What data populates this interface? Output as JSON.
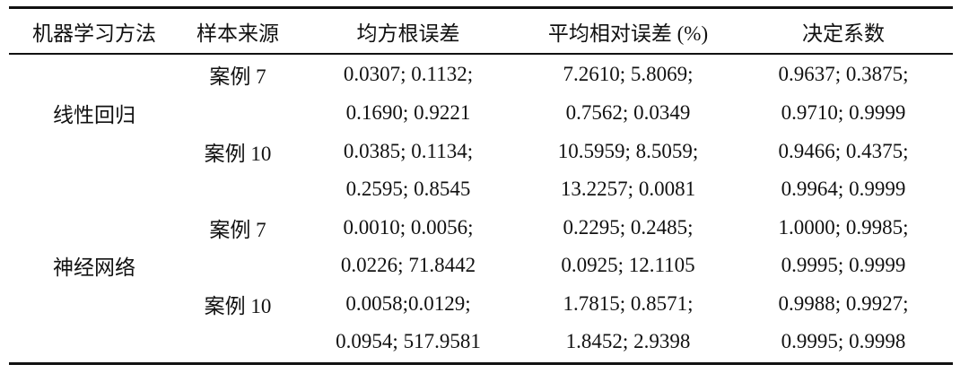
{
  "table": {
    "header": [
      "机器学习方法",
      "样本来源",
      "均方根误差",
      "平均相对误差 (%)",
      "决定系数"
    ],
    "groups": [
      {
        "method": "线性回归",
        "cases": [
          {
            "source": "案例 7",
            "rmse": [
              "0.0307; 0.1132;",
              "0.1690; 0.9221"
            ],
            "mre": [
              "7.2610; 5.8069;",
              "0.7562; 0.0349"
            ],
            "r2": [
              "0.9637; 0.3875;",
              "0.9710; 0.9999"
            ]
          },
          {
            "source": "案例 10",
            "rmse": [
              "0.0385; 0.1134;",
              "0.2595; 0.8545"
            ],
            "mre": [
              "10.5959; 8.5059;",
              "13.2257; 0.0081"
            ],
            "r2": [
              "0.9466; 0.4375;",
              "0.9964; 0.9999"
            ]
          }
        ]
      },
      {
        "method": "神经网络",
        "cases": [
          {
            "source": "案例 7",
            "rmse": [
              "0.0010; 0.0056;",
              "0.0226; 71.8442"
            ],
            "mre": [
              "0.2295; 0.2485;",
              "0.0925; 12.1105"
            ],
            "r2": [
              "1.0000; 0.9985;",
              "0.9995; 0.9999"
            ]
          },
          {
            "source": "案例 10",
            "rmse": [
              "0.0058;0.0129;",
              "0.0954; 517.9581"
            ],
            "mre": [
              "1.7815; 0.8571;",
              "1.8452; 2.9398"
            ],
            "r2": [
              "0.9988; 0.9927;",
              "0.9995; 0.9998"
            ]
          }
        ]
      }
    ]
  }
}
